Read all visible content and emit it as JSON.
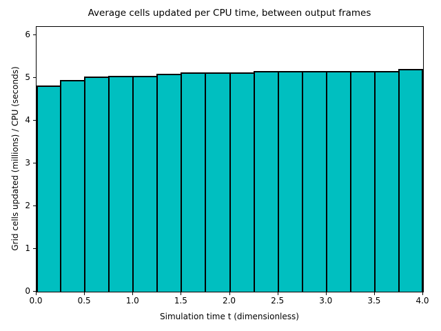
{
  "chart_data": {
    "type": "bar",
    "title": "Average cells updated per CPU time, between output frames",
    "xlabel": "Simulation time t (dimensionless)",
    "ylabel": "Grid cells updated (millions) / CPU (seconds)",
    "bar_color": "#00bfc0",
    "bar_edge_color": "#000000",
    "background_color": "#ffffff",
    "grid": false,
    "legend": null,
    "xlim": [
      0.0,
      4.0
    ],
    "ylim": [
      0.0,
      6.2
    ],
    "x_tick_values": [
      0.0,
      0.5,
      1.0,
      1.5,
      2.0,
      2.5,
      3.0,
      3.5,
      4.0
    ],
    "x_tick_labels": [
      "0.0",
      "0.5",
      "1.0",
      "1.5",
      "2.0",
      "2.5",
      "3.0",
      "3.5",
      "4.0"
    ],
    "y_tick_values": [
      0,
      1,
      2,
      3,
      4,
      5,
      6
    ],
    "y_tick_labels": [
      "0",
      "1",
      "2",
      "3",
      "4",
      "5",
      "6"
    ],
    "bar_width": 0.25,
    "bin_edges": [
      0.0,
      0.25,
      0.5,
      0.75,
      1.0,
      1.25,
      1.5,
      1.75,
      2.0,
      2.25,
      2.5,
      2.75,
      3.0,
      3.25,
      3.5,
      3.75,
      4.0
    ],
    "values": [
      4.82,
      4.95,
      5.03,
      5.06,
      5.06,
      5.1,
      5.13,
      5.13,
      5.13,
      5.16,
      5.16,
      5.17,
      5.17,
      5.17,
      5.17,
      5.21
    ]
  }
}
